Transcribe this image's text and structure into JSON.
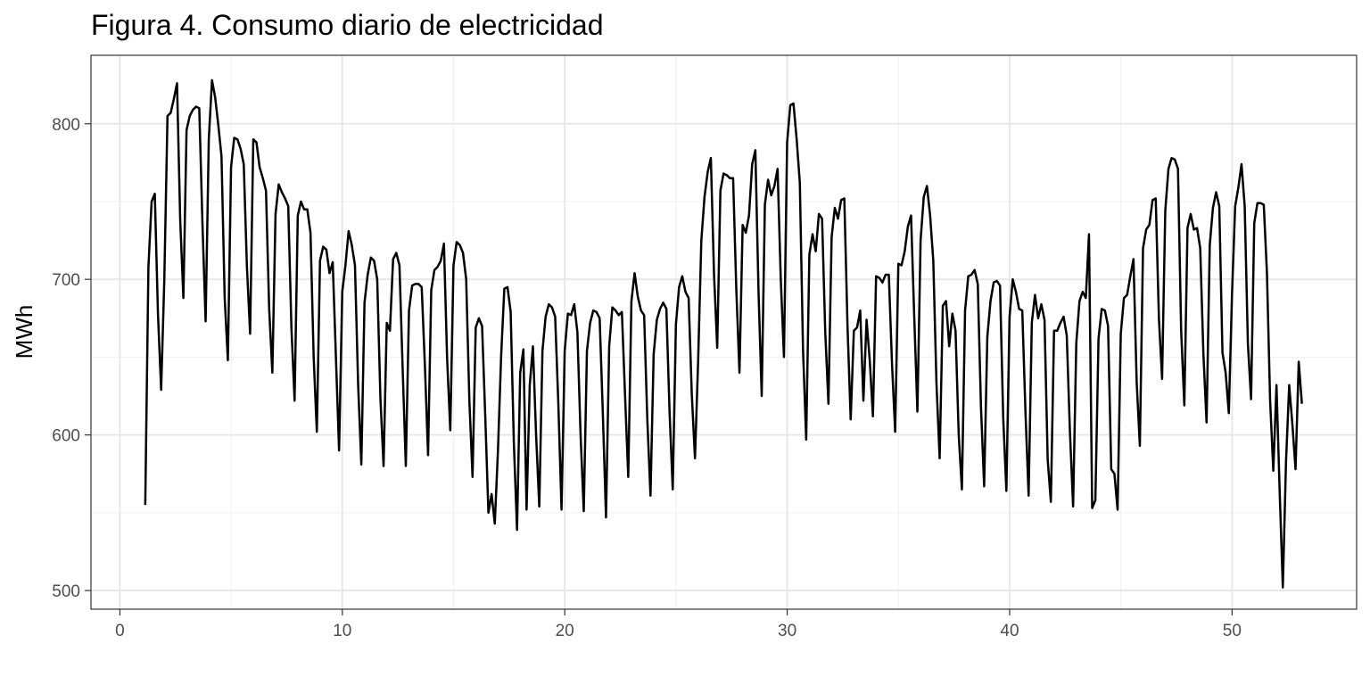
{
  "chart_data": {
    "type": "line",
    "title": "Figura 4. Consumo diario de electricidad",
    "xlabel": "",
    "ylabel": "MWh",
    "xlim": [
      -1.3,
      55.6
    ],
    "ylim": [
      488,
      844
    ],
    "x_ticks": [
      0,
      10,
      20,
      30,
      40,
      50
    ],
    "y_ticks": [
      500,
      600,
      700,
      800
    ],
    "grid": true,
    "line_color": "#000000",
    "series": [
      {
        "x_start": 1.14,
        "x_step": 0.142857,
        "values": [
          555,
          708,
          750,
          755,
          678,
          629,
          700,
          805,
          807,
          816,
          826,
          738,
          688,
          796,
          805,
          809,
          811,
          810,
          736,
          673,
          790,
          828,
          817,
          799,
          779,
          688,
          648,
          772,
          791,
          790,
          784,
          774,
          708,
          665,
          790,
          788,
          772,
          765,
          757,
          681,
          640,
          742,
          761,
          756,
          752,
          747,
          669,
          622,
          741,
          750,
          745,
          745,
          730,
          650,
          602,
          712,
          721,
          719,
          704,
          711,
          650,
          590,
          692,
          709,
          731,
          722,
          709,
          632,
          581,
          685,
          703,
          714,
          712,
          700,
          624,
          580,
          672,
          667,
          713,
          717,
          709,
          643,
          580,
          680,
          696,
          697,
          697,
          695,
          645,
          587,
          693,
          706,
          708,
          712,
          723,
          649,
          603,
          709,
          724,
          722,
          717,
          700,
          622,
          573,
          669,
          675,
          670,
          612,
          550,
          562,
          543,
          590,
          651,
          694,
          695,
          679,
          595,
          539,
          640,
          655,
          552,
          632,
          657,
          600,
          554,
          654,
          676,
          684,
          682,
          676,
          620,
          552,
          654,
          678,
          677,
          684,
          666,
          600,
          551,
          654,
          672,
          680,
          679,
          675,
          614,
          547,
          657,
          682,
          680,
          677,
          679,
          625,
          573,
          686,
          704,
          689,
          680,
          677,
          610,
          561,
          652,
          674,
          681,
          685,
          681,
          615,
          565,
          671,
          695,
          702,
          692,
          688,
          626,
          585,
          648,
          725,
          753,
          769,
          778,
          703,
          656,
          757,
          768,
          767,
          765,
          765,
          694,
          640,
          735,
          730,
          741,
          774,
          783,
          692,
          625,
          748,
          764,
          754,
          760,
          771,
          700,
          650,
          788,
          812,
          813,
          790,
          762,
          655,
          597,
          716,
          729,
          718,
          742,
          739,
          666,
          620,
          727,
          746,
          739,
          751,
          752,
          670,
          610,
          667,
          669,
          680,
          622,
          674,
          648,
          612,
          702,
          701,
          698,
          703,
          703,
          646,
          602,
          710,
          709,
          718,
          734,
          741,
          676,
          615,
          725,
          753,
          760,
          741,
          712,
          633,
          585,
          683,
          686,
          657,
          678,
          667,
          600,
          565,
          680,
          702,
          703,
          706,
          697,
          618,
          567,
          663,
          686,
          698,
          699,
          696,
          611,
          564,
          676,
          700,
          692,
          681,
          680,
          615,
          561,
          672,
          690,
          675,
          684,
          674,
          584,
          557,
          667,
          667,
          672,
          676,
          664,
          602,
          554,
          659,
          686,
          692,
          688,
          729,
          553,
          558,
          662,
          681,
          680,
          670,
          578,
          575,
          552,
          665,
          688,
          690,
          702,
          713,
          634,
          593,
          720,
          732,
          735,
          751,
          752,
          675,
          636,
          744,
          771,
          778,
          777,
          771,
          667,
          619,
          733,
          742,
          732,
          733,
          720,
          652,
          608,
          722,
          746,
          756,
          747,
          653,
          640,
          614,
          690,
          747,
          759,
          774,
          747,
          659,
          623,
          736,
          749,
          749,
          748,
          704,
          622,
          577,
          632,
          564,
          502,
          583,
          632,
          607,
          578,
          647,
          620
        ]
      }
    ]
  }
}
